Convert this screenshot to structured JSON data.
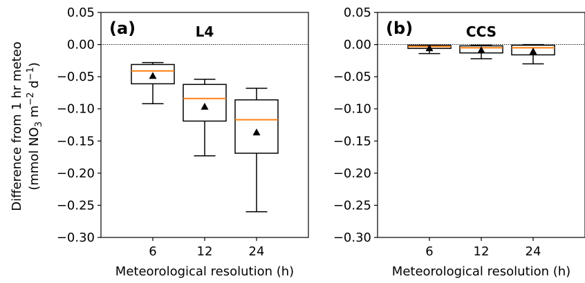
{
  "y_axis_label_line1": "Difference from 1 hr meteo",
  "y_axis_label_line2_prefix": "(mmol NO",
  "y_axis_label_sub3": "3",
  "y_axis_label_m": " m",
  "y_axis_label_sup_m2": "−2",
  "y_axis_label_d": " d",
  "y_axis_label_sup_d1": "−1",
  "y_axis_label_close": ")",
  "colors": {
    "median": "#ff7f0e",
    "box": "#000000",
    "zero_line": "#000000"
  },
  "chart_data": [
    {
      "type": "box",
      "panel_label": "(a)",
      "title": "L4",
      "xlabel": "Meteorological resolution (h)",
      "ylabel": "Difference from 1 hr meteo (mmol NO3 m−2 d−1)",
      "ylim": [
        -0.3,
        0.05
      ],
      "yticks": [
        "0.05",
        "0.00",
        "−0.05",
        "−0.10",
        "−0.15",
        "−0.20",
        "−0.25",
        "−0.30"
      ],
      "categories": [
        "6",
        "12",
        "24"
      ],
      "boxes": [
        {
          "category": "6",
          "whisker_low": -0.092,
          "q1": -0.061,
          "median": -0.041,
          "q3": -0.031,
          "whisker_high": -0.028,
          "mean": -0.049
        },
        {
          "category": "12",
          "whisker_low": -0.173,
          "q1": -0.119,
          "median": -0.084,
          "q3": -0.062,
          "whisker_high": -0.054,
          "mean": -0.097
        },
        {
          "category": "24",
          "whisker_low": -0.26,
          "q1": -0.169,
          "median": -0.117,
          "q3": -0.086,
          "whisker_high": -0.068,
          "mean": -0.137
        }
      ],
      "zero_line": true
    },
    {
      "type": "box",
      "panel_label": "(b)",
      "title": "CCS",
      "xlabel": "Meteorological resolution (h)",
      "ylabel": "",
      "ylim": [
        -0.3,
        0.05
      ],
      "yticks": [
        "0.05",
        "0.00",
        "−0.05",
        "−0.10",
        "−0.15",
        "−0.20",
        "−0.25",
        "−0.30"
      ],
      "categories": [
        "6",
        "12",
        "24"
      ],
      "boxes": [
        {
          "category": "6",
          "whisker_low": -0.014,
          "q1": -0.006,
          "median": -0.003,
          "q3": -0.001,
          "whisker_high": -0.001,
          "mean": -0.006
        },
        {
          "category": "12",
          "whisker_low": -0.022,
          "q1": -0.013,
          "median": -0.005,
          "q3": -0.002,
          "whisker_high": -0.001,
          "mean": -0.009
        },
        {
          "category": "24",
          "whisker_low": -0.03,
          "q1": -0.016,
          "median": -0.005,
          "q3": -0.001,
          "whisker_high": 0.0,
          "mean": -0.011
        }
      ],
      "zero_line": true
    }
  ]
}
